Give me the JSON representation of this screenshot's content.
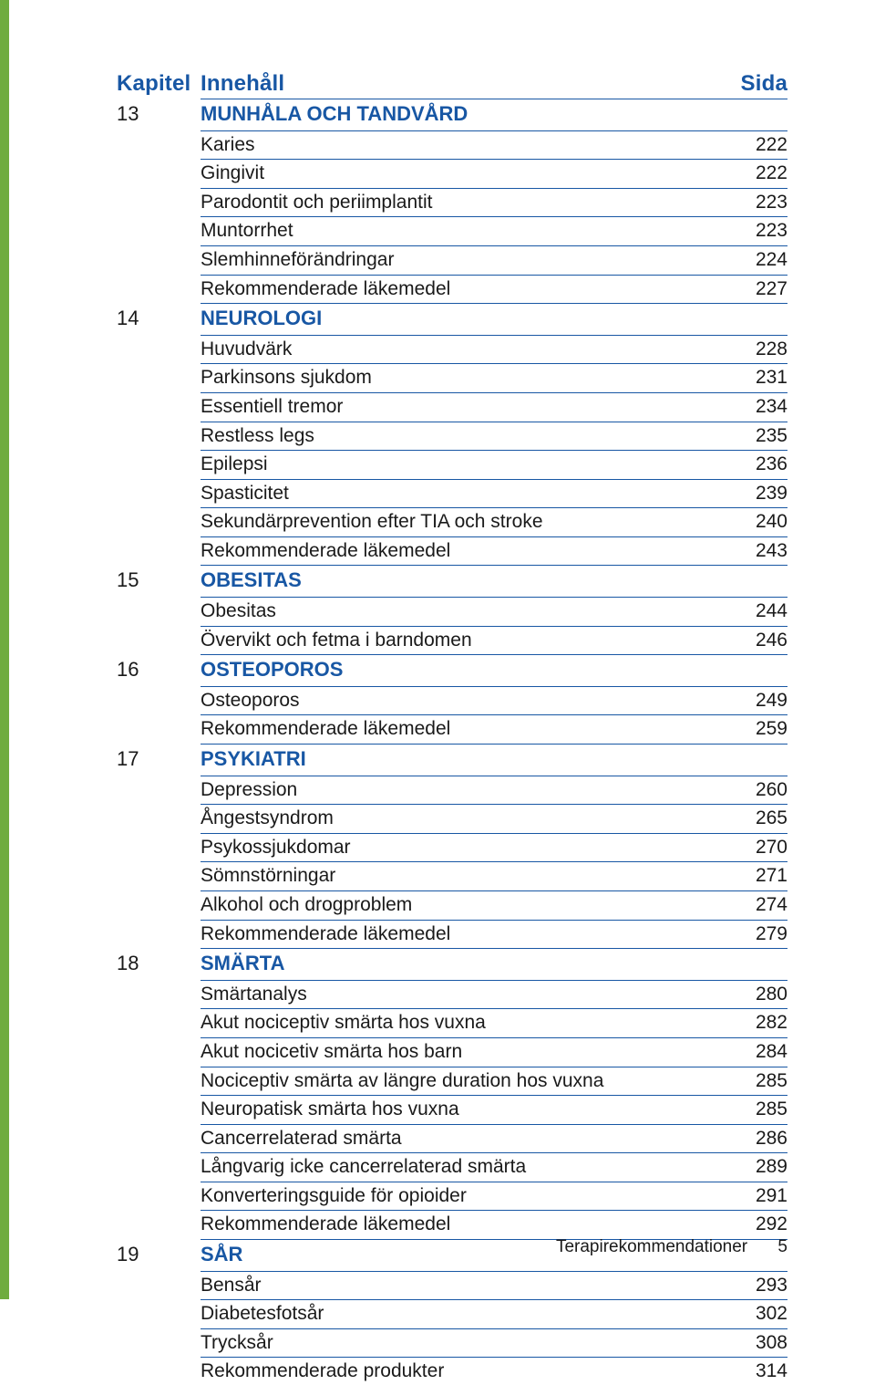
{
  "colors": {
    "accent": "#1857a4",
    "green_bar": "#6fac3f",
    "text": "#1a1a1a",
    "background": "#ffffff"
  },
  "typography": {
    "header_fontsize": 24,
    "section_fontsize": 22,
    "item_fontsize": 21,
    "footer_fontsize": 19,
    "font_family": "Arial, Helvetica, sans-serif"
  },
  "header": {
    "chapter": "Kapitel",
    "content": "Innehåll",
    "page": "Sida"
  },
  "sections": [
    {
      "num": "13",
      "title": "MUNHÅLA OCH TANDVÅRD",
      "items": [
        {
          "label": "Karies",
          "page": "222"
        },
        {
          "label": "Gingivit",
          "page": "222"
        },
        {
          "label": "Parodontit och periimplantit",
          "page": "223"
        },
        {
          "label": "Muntorrhet",
          "page": "223"
        },
        {
          "label": "Slemhinneförändringar",
          "page": "224"
        },
        {
          "label": "Rekommenderade läkemedel",
          "page": "227"
        }
      ]
    },
    {
      "num": "14",
      "title": "NEUROLOGI",
      "items": [
        {
          "label": "Huvudvärk",
          "page": "228"
        },
        {
          "label": "Parkinsons sjukdom",
          "page": "231"
        },
        {
          "label": "Essentiell tremor",
          "page": "234"
        },
        {
          "label": "Restless legs",
          "page": "235"
        },
        {
          "label": "Epilepsi",
          "page": "236"
        },
        {
          "label": "Spasticitet",
          "page": "239"
        },
        {
          "label": "Sekundärprevention efter TIA och stroke",
          "page": "240"
        },
        {
          "label": "Rekommenderade läkemedel",
          "page": "243"
        }
      ]
    },
    {
      "num": "15",
      "title": "OBESITAS",
      "items": [
        {
          "label": "Obesitas",
          "page": "244"
        },
        {
          "label": "Övervikt och fetma i barndomen",
          "page": "246"
        }
      ]
    },
    {
      "num": "16",
      "title": "OSTEOPOROS",
      "items": [
        {
          "label": "Osteoporos",
          "page": "249"
        },
        {
          "label": "Rekommenderade läkemedel",
          "page": "259"
        }
      ]
    },
    {
      "num": "17",
      "title": "PSYKIATRI",
      "items": [
        {
          "label": "Depression",
          "page": "260"
        },
        {
          "label": "Ångestsyndrom",
          "page": "265"
        },
        {
          "label": "Psykossjukdomar",
          "page": "270"
        },
        {
          "label": "Sömnstörningar",
          "page": "271"
        },
        {
          "label": "Alkohol och drogproblem",
          "page": "274"
        },
        {
          "label": "Rekommenderade läkemedel",
          "page": "279"
        }
      ]
    },
    {
      "num": "18",
      "title": "SMÄRTA",
      "items": [
        {
          "label": "Smärtanalys",
          "page": "280"
        },
        {
          "label": "Akut nociceptiv smärta hos vuxna",
          "page": "282"
        },
        {
          "label": "Akut nocicetiv smärta hos barn",
          "page": "284"
        },
        {
          "label": "Nociceptiv smärta av längre duration hos vuxna",
          "page": "285"
        },
        {
          "label": "Neuropatisk smärta hos vuxna",
          "page": "285"
        },
        {
          "label": "Cancerrelaterad smärta",
          "page": "286"
        },
        {
          "label": "Långvarig icke cancerrelaterad smärta",
          "page": "289"
        },
        {
          "label": "Konverteringsguide för opioider",
          "page": "291"
        },
        {
          "label": "Rekommenderade läkemedel",
          "page": "292"
        }
      ]
    },
    {
      "num": "19",
      "title": "SÅR",
      "items": [
        {
          "label": "Bensår",
          "page": "293"
        },
        {
          "label": "Diabetesfotsår",
          "page": "302"
        },
        {
          "label": "Trycksår",
          "page": "308"
        },
        {
          "label": "Rekommenderade produkter",
          "page": "314"
        }
      ]
    }
  ],
  "footer": {
    "text": "Terapirekommendationer",
    "page_num": "5"
  }
}
